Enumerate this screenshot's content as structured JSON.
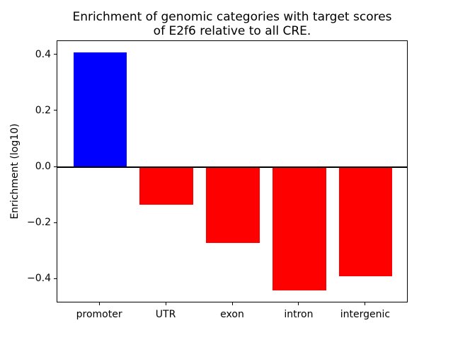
{
  "figure": {
    "background": "#ffffff",
    "title": "Enrichment of genomic categories with target scores\nof E2f6 relative to all CRE.",
    "ylabel": "Enrichment (log10)"
  },
  "chart_data": {
    "type": "bar",
    "title": "Enrichment of genomic categories with target scores of E2f6 relative to all CRE.",
    "xlabel": "",
    "ylabel": "Enrichment (log10)",
    "categories": [
      "promoter",
      "UTR",
      "exon",
      "intron",
      "intergenic"
    ],
    "values": [
      0.41,
      -0.135,
      -0.27,
      -0.44,
      -0.39
    ],
    "bar_colors": [
      "#0000ff",
      "#ff0000",
      "#ff0000",
      "#ff0000",
      "#ff0000"
    ],
    "bar_width": 0.8,
    "xlim": [
      -0.64,
      4.64
    ],
    "ylim": [
      -0.485,
      0.45
    ],
    "yticks": [
      {
        "value": 0.4,
        "label": "0.4"
      },
      {
        "value": 0.2,
        "label": "0.2"
      },
      {
        "value": 0.0,
        "label": "0.0"
      },
      {
        "value": -0.2,
        "label": "−0.2"
      },
      {
        "value": -0.4,
        "label": "−0.4"
      }
    ],
    "zero_line": true,
    "grid": false,
    "legend": false,
    "axis_color": "#000000"
  }
}
